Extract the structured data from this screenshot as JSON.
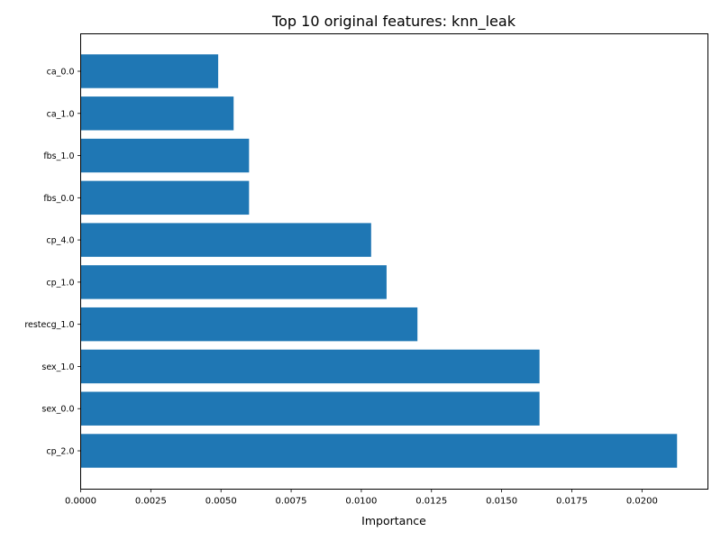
{
  "chart_data": {
    "type": "bar",
    "orientation": "horizontal",
    "title": "Top 10 original features: knn_leak",
    "xlabel": "Importance",
    "ylabel": "",
    "categories": [
      "ca_0.0",
      "ca_1.0",
      "fbs_1.0",
      "fbs_0.0",
      "cp_4.0",
      "cp_1.0",
      "restecg_1.0",
      "sex_1.0",
      "sex_0.0",
      "cp_2.0"
    ],
    "values": [
      0.0049,
      0.00545,
      0.006,
      0.006,
      0.01035,
      0.0109,
      0.012,
      0.01635,
      0.01635,
      0.02125
    ],
    "xlim": [
      0,
      0.02235
    ],
    "xticks": [
      "0.0000",
      "0.0025",
      "0.0050",
      "0.0075",
      "0.0100",
      "0.0125",
      "0.0150",
      "0.0175",
      "0.0200"
    ],
    "bar_color": "#1f77b4",
    "grid": false,
    "legend": "none"
  }
}
